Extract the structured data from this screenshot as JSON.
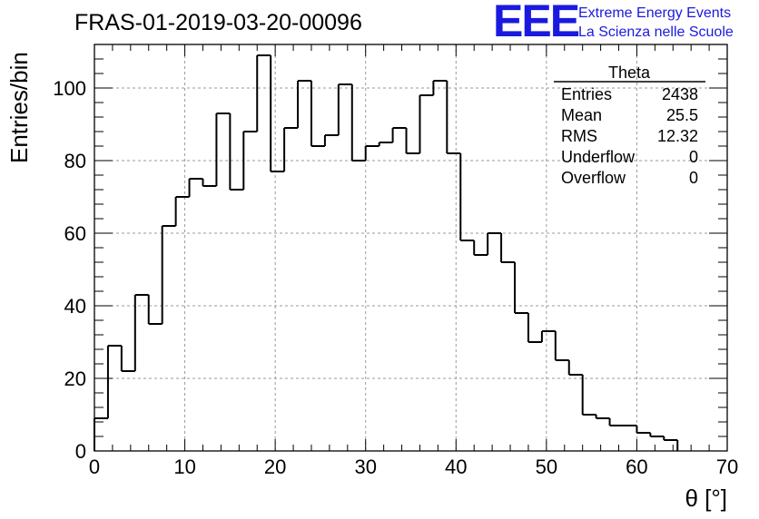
{
  "header": {
    "run_title": "FRAS-01-2019-03-20-00096"
  },
  "logo": {
    "mark": "EEE",
    "line1": "Extreme Energy Events",
    "line2": "La Scienza nelle Scuole",
    "color": "#1a1adf"
  },
  "stats": {
    "name": "Theta",
    "rows": [
      {
        "label": "Entries",
        "value": "2438"
      },
      {
        "label": "Mean",
        "value": "25.5"
      },
      {
        "label": "RMS",
        "value": "12.32"
      },
      {
        "label": "Underflow",
        "value": "0"
      },
      {
        "label": "Overflow",
        "value": "0"
      }
    ]
  },
  "chart_data": {
    "type": "histogram",
    "title": "FRAS-01-2019-03-20-00096",
    "xlabel": "θ [°]",
    "ylabel": "Entries/bin",
    "xlim": [
      0,
      70
    ],
    "ylim": [
      0,
      112
    ],
    "bin_width": 1.5,
    "bin_edges_start": 0,
    "values": [
      9,
      29,
      22,
      43,
      35,
      62,
      70,
      75,
      73,
      93,
      72,
      88,
      109,
      77,
      89,
      102,
      84,
      87,
      101,
      80,
      84,
      85,
      89,
      82,
      98,
      102,
      82,
      58,
      54,
      60,
      52,
      38,
      30,
      33,
      25,
      21,
      10,
      9,
      7,
      7,
      5,
      4,
      3
    ],
    "x_ticks": [
      0,
      10,
      20,
      30,
      40,
      50,
      60,
      70
    ],
    "y_ticks": [
      0,
      20,
      40,
      60,
      80,
      100
    ],
    "grid": true,
    "line_color": "#000000"
  }
}
